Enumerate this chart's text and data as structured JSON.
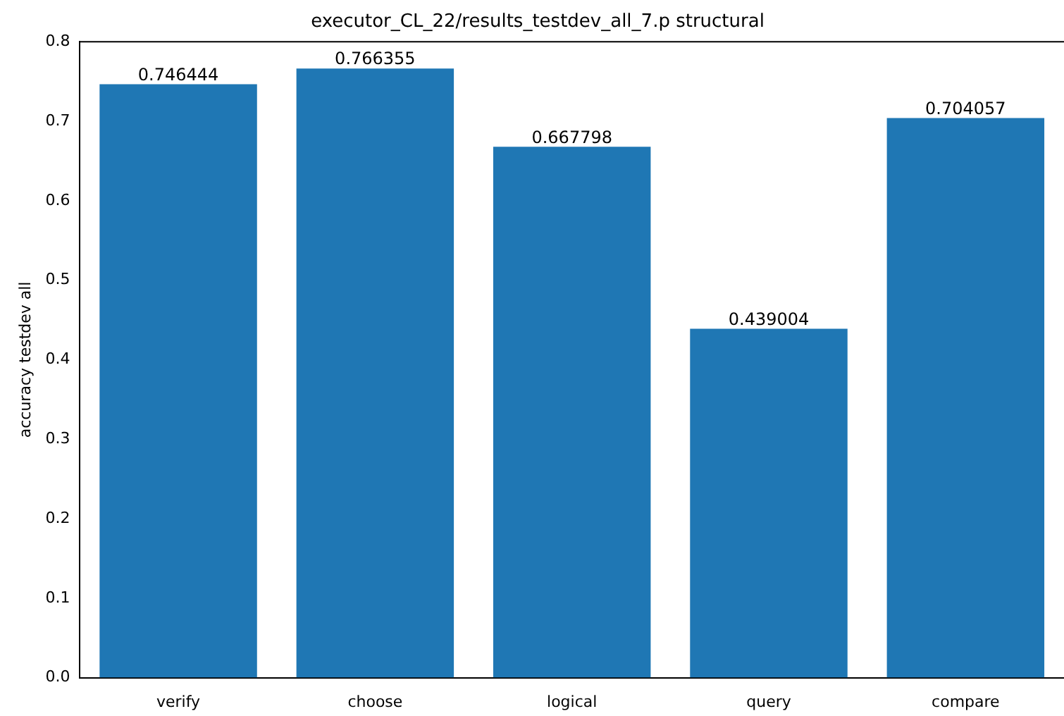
{
  "chart_data": {
    "type": "bar",
    "title": "executor_CL_22/results_testdev_all_7.p structural",
    "ylabel": "accuracy testdev all",
    "categories": [
      "verify",
      "choose",
      "logical",
      "query",
      "compare"
    ],
    "values": [
      0.746444,
      0.766355,
      0.667798,
      0.439004,
      0.704057
    ],
    "color": "#1f77b4",
    "ylim": [
      0,
      0.8
    ],
    "yticks": [
      {
        "value": 0,
        "label": "0.0"
      },
      {
        "value": 0.1,
        "label": "0.1"
      },
      {
        "value": 0.2,
        "label": "0.2"
      },
      {
        "value": 0.3,
        "label": "0.3"
      },
      {
        "value": 0.4,
        "label": "0.4"
      },
      {
        "value": 0.5,
        "label": "0.5"
      },
      {
        "value": 0.6,
        "label": "0.6"
      },
      {
        "value": 0.7,
        "label": "0.7"
      },
      {
        "value": 0.8,
        "label": "0.8"
      }
    ],
    "data_labels": true,
    "grid": false,
    "legend": false
  }
}
